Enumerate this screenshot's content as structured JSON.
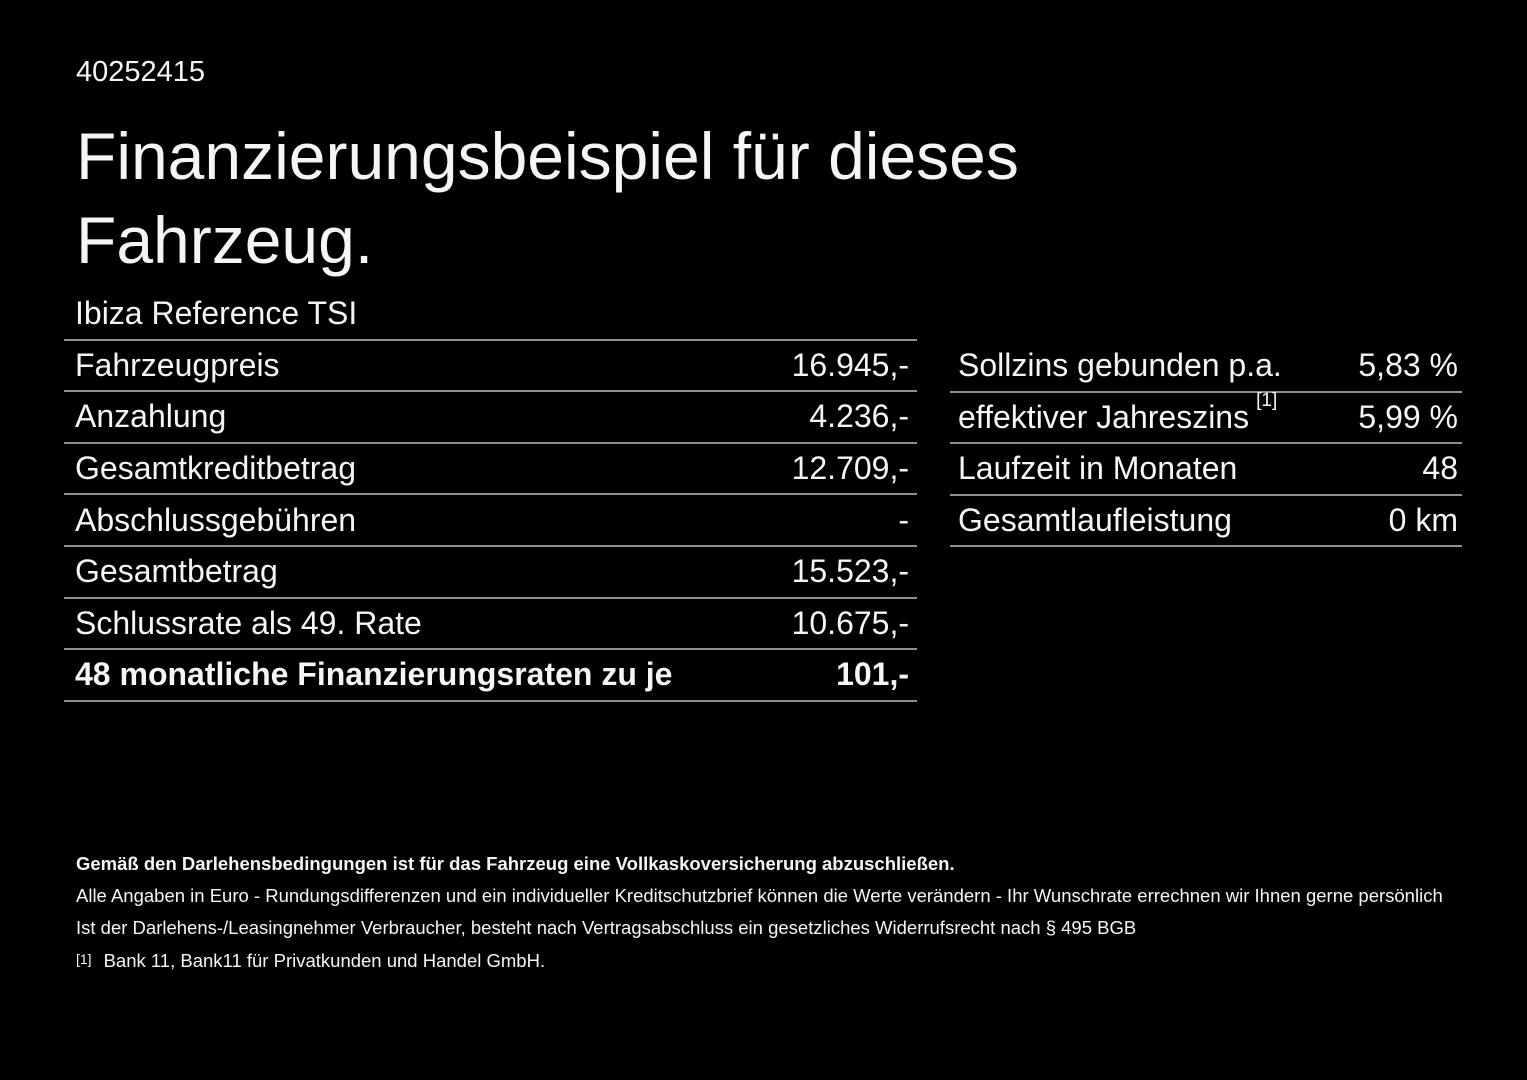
{
  "page": {
    "id_number": "40252415",
    "title": "Finanzierungsbeispiel für dieses Fahrzeug.",
    "vehicle_name": "Ibiza Reference TSI"
  },
  "colors": {
    "background": "#000000",
    "text": "#f5f5f5",
    "divider": "#909090"
  },
  "finance_table": {
    "rows": [
      {
        "label": "Fahrzeugpreis",
        "value": "16.945,-"
      },
      {
        "label": "Anzahlung",
        "value": "4.236,-"
      },
      {
        "label": "Gesamtkreditbetrag",
        "value": "12.709,-"
      },
      {
        "label": "Abschlussgebühren",
        "value": "-"
      },
      {
        "label": "Gesamtbetrag",
        "value": "15.523,-"
      },
      {
        "label": "Schlussrate als 49. Rate",
        "value": "10.675,-"
      },
      {
        "label": "48 monatliche Finanzierungsraten zu je",
        "value": "101,-"
      }
    ]
  },
  "conditions_table": {
    "rows": [
      {
        "label": "Sollzins gebunden p.a.",
        "sup": "",
        "value": "5,83 %"
      },
      {
        "label": "effektiver Jahreszins",
        "sup": "[1]",
        "value": "5,99 %"
      },
      {
        "label": "Laufzeit in Monaten",
        "sup": "",
        "value": "48"
      },
      {
        "label": "Gesamtlaufleistung",
        "sup": "",
        "value": "0 km"
      }
    ]
  },
  "footer": {
    "line1": "Gemäß den Darlehensbedingungen ist für das Fahrzeug eine Vollkaskoversicherung abzuschließen.",
    "line2": "Alle Angaben in Euro - Rundungsdifferenzen und ein individueller Kreditschutzbrief können die Werte verändern - Ihr Wunschrate errechnen wir Ihnen gerne persönlich",
    "line3": "Ist der Darlehens-/Leasingnehmer Verbraucher, besteht nach Vertragsabschluss ein gesetzliches Widerrufsrecht nach § 495 BGB",
    "footnote_marker": "[1]",
    "footnote_text": "Bank 11, Bank11 für Privatkunden und Handel GmbH."
  }
}
